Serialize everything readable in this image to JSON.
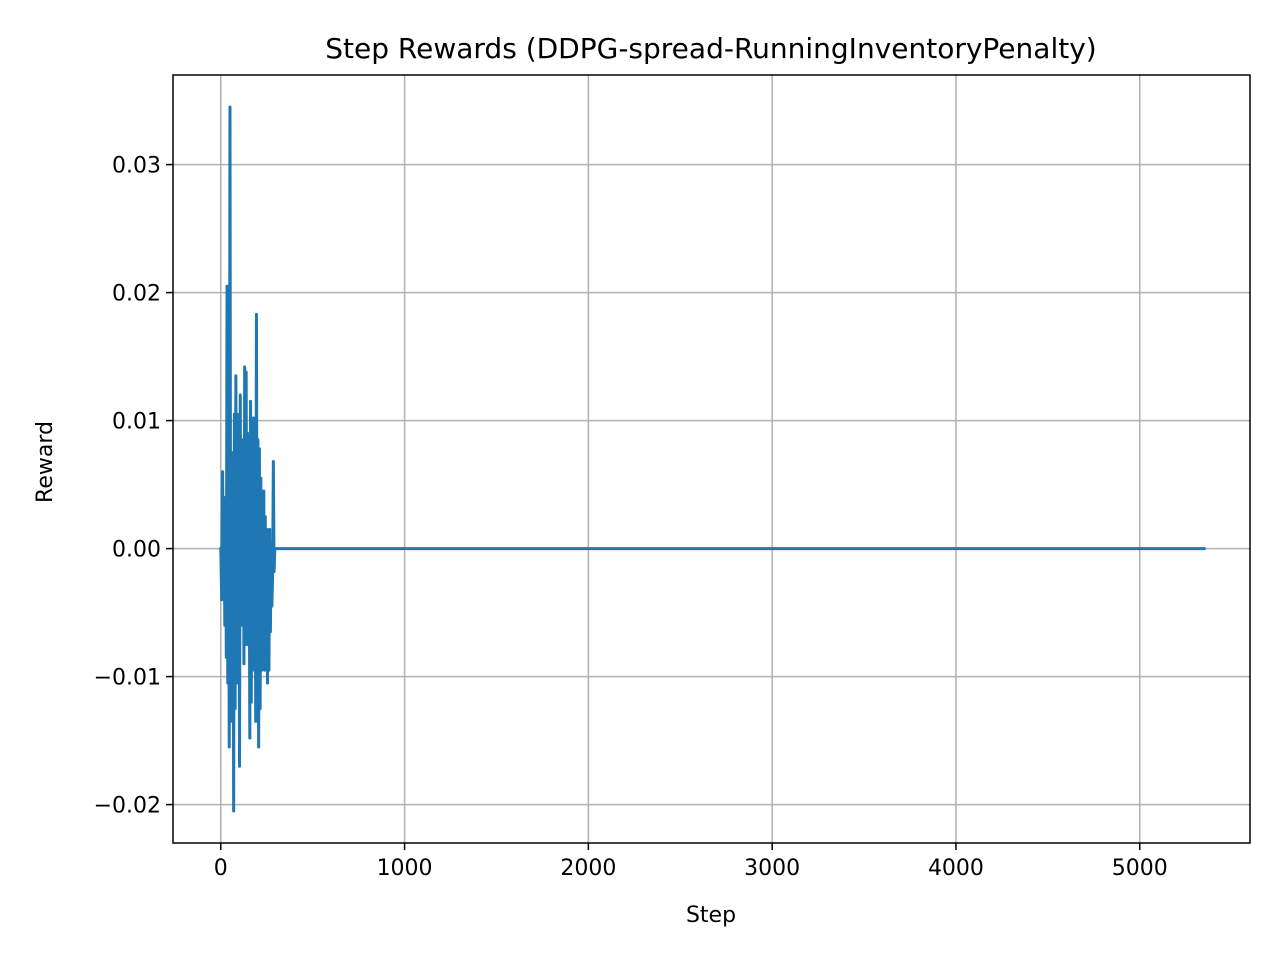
{
  "chart_data": {
    "type": "line",
    "title": "Step Rewards (DDPG-spread-RunningInventoryPenalty)",
    "xlabel": "Step",
    "ylabel": "Reward",
    "xlim": [
      -260,
      5600
    ],
    "ylim": [
      -0.023,
      0.037
    ],
    "xticks": [
      0,
      1000,
      2000,
      3000,
      4000,
      5000
    ],
    "xtick_labels": [
      "0",
      "1000",
      "2000",
      "3000",
      "4000",
      "5000"
    ],
    "yticks": [
      -0.02,
      -0.01,
      0.0,
      0.01,
      0.02,
      0.03
    ],
    "ytick_labels": [
      "−0.02",
      "−0.01",
      "0.00",
      "0.01",
      "0.02",
      "0.03"
    ],
    "grid": true,
    "series": [
      {
        "color": "#1f77b4",
        "x": [
          0,
          5,
          10,
          14,
          18,
          22,
          26,
          30,
          34,
          38,
          42,
          46,
          50,
          54,
          58,
          62,
          66,
          70,
          74,
          78,
          82,
          86,
          90,
          94,
          98,
          102,
          106,
          110,
          114,
          118,
          122,
          126,
          130,
          134,
          138,
          142,
          146,
          150,
          154,
          158,
          162,
          166,
          170,
          174,
          178,
          182,
          186,
          190,
          194,
          198,
          202,
          206,
          210,
          214,
          218,
          222,
          226,
          230,
          234,
          238,
          242,
          246,
          250,
          254,
          258,
          262,
          266,
          270,
          274,
          278,
          282,
          286,
          290,
          294,
          298,
          302,
          306,
          310,
          314,
          318,
          322,
          326,
          330,
          334,
          340,
          5350
        ],
        "y": [
          0.0,
          -0.004,
          0.006,
          -0.003,
          0.001,
          -0.006,
          0.004,
          -0.0085,
          0.0205,
          -0.0105,
          0.006,
          -0.0155,
          0.0345,
          -0.01,
          0.0055,
          -0.0135,
          0.0075,
          -0.0205,
          0.0105,
          -0.0125,
          0.0135,
          -0.0105,
          0.005,
          -0.009,
          0.0105,
          -0.017,
          0.012,
          -0.006,
          0.0085,
          -0.004,
          0.0045,
          -0.009,
          0.0142,
          -0.0065,
          0.0138,
          -0.0075,
          0.009,
          -0.0045,
          0.0028,
          -0.0148,
          0.0115,
          -0.012,
          0.006,
          -0.0095,
          0.0102,
          -0.0085,
          0.0065,
          -0.0135,
          0.0183,
          -0.0095,
          0.0085,
          -0.0155,
          0.0078,
          -0.0125,
          0.0055,
          -0.0095,
          0.0028,
          -0.0085,
          0.0045,
          -0.0095,
          0.0025,
          -0.0065,
          0.0015,
          -0.0105,
          0.0,
          -0.0095,
          0.0015,
          -0.0065,
          0.0005,
          -0.0045,
          -0.002,
          0.0068,
          -0.0018,
          0.0,
          0.0,
          0.0,
          0.0,
          0.0,
          0.0,
          0.0,
          0.0,
          0.0,
          0.0,
          0.0,
          0.0,
          0.0
        ]
      }
    ]
  }
}
